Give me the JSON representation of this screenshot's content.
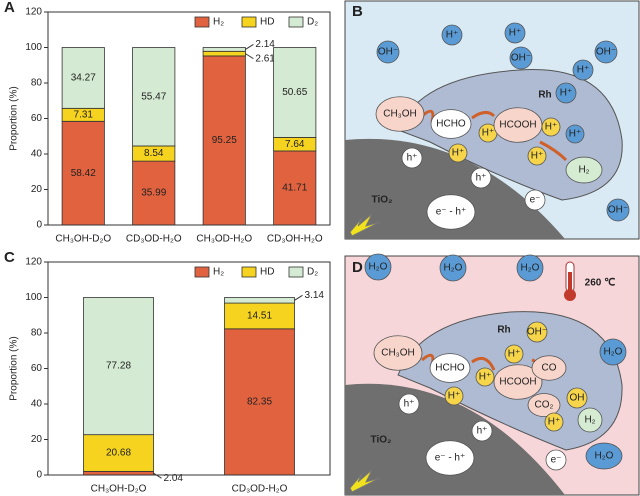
{
  "chart_data": [
    {
      "type": "stacked_bar",
      "panel_label": "A",
      "ylabel": "Proportion (%)",
      "categories": [
        "CH₃OH-D₂O",
        "CD₃OD-H₂O",
        "CH₃OD-H₂O",
        "CD₃OH-H₂O"
      ],
      "series": [
        {
          "name": "H₂",
          "color": "#e1623f",
          "values": [
            58.42,
            35.99,
            95.25,
            41.71
          ]
        },
        {
          "name": "HD",
          "color": "#f5d31f",
          "values": [
            7.31,
            8.54,
            2.61,
            7.64
          ]
        },
        {
          "name": "D₂",
          "color": "#d5ead2",
          "values": [
            34.27,
            55.47,
            2.14,
            50.65
          ]
        }
      ],
      "ylim": [
        0,
        120
      ],
      "yticks": [
        0,
        20,
        40,
        60,
        80,
        100,
        120
      ],
      "legend": "upper right"
    },
    {
      "type": "stacked_bar",
      "panel_label": "C",
      "ylabel": "Proportion (%)",
      "categories": [
        "CH₃OH-D₂O",
        "CD₃OD-H₂O"
      ],
      "series": [
        {
          "name": "H₂",
          "color": "#e1623f",
          "values": [
            2.04,
            82.35
          ]
        },
        {
          "name": "HD",
          "color": "#f5d31f",
          "values": [
            20.68,
            14.51
          ]
        },
        {
          "name": "D₂",
          "color": "#d5ead2",
          "values": [
            77.28,
            3.14
          ]
        }
      ],
      "ylim": [
        0,
        120
      ],
      "yticks": [
        0,
        20,
        40,
        60,
        80,
        100,
        120
      ],
      "legend": "upper right"
    }
  ],
  "diagram_b": {
    "label": "B",
    "items": [
      "OH⁻",
      "H⁺",
      "H⁺",
      "OH⁻",
      "OH⁻",
      "H⁺",
      "Rh",
      "H⁺",
      "CH₃OH",
      "HCHO",
      "H⁺",
      "HCOOH",
      "H⁺",
      "H⁺",
      "H⁺",
      "H⁺",
      "h⁺",
      "h⁺",
      "H₂",
      "TiO₂",
      "e⁻ - h⁺",
      "e⁻",
      "OH⁻"
    ]
  },
  "diagram_d": {
    "label": "D",
    "items": [
      "H₂O",
      "H₂O",
      "H₂O",
      "260 ℃",
      "H₂O",
      "Rh",
      "OH⁻",
      "H⁺",
      "CH₃OH",
      "HCHO",
      "H⁺",
      "HCOOH",
      "CO",
      "CO₂",
      "OH",
      "H₂",
      "H⁺",
      "H⁺",
      "h⁺",
      "h⁺",
      "TiO₂",
      "e⁻ - h⁺",
      "e⁻",
      "H₂O"
    ]
  }
}
